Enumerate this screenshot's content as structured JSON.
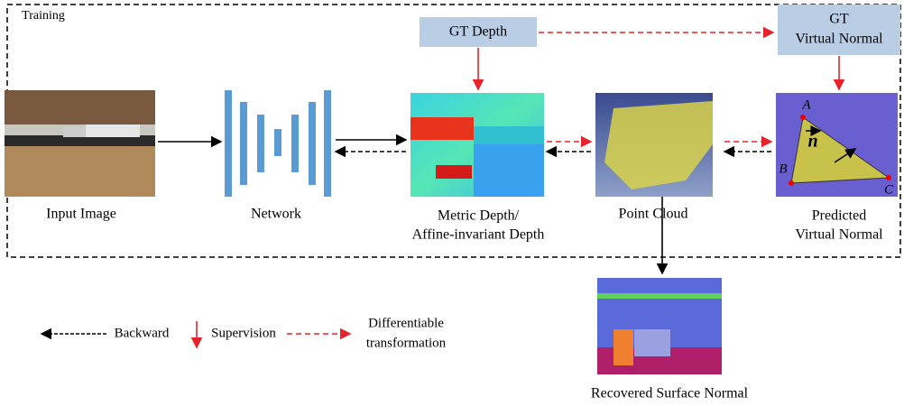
{
  "training_label": "Training",
  "gt_depth": "GT Depth",
  "gt_virtual_normal": [
    "GT",
    "Virtual Normal"
  ],
  "nodes": [
    {
      "label": [
        "Input Image"
      ]
    },
    {
      "label": [
        "Network"
      ]
    },
    {
      "label": [
        "Metric Depth/",
        "Affine-invariant Depth"
      ]
    },
    {
      "label": [
        "Point Cloud"
      ]
    },
    {
      "label": [
        "Predicted",
        "Virtual Normal"
      ]
    },
    {
      "label": [
        "Recovered Surface Normal"
      ]
    }
  ],
  "triangle_points": [
    "A",
    "B",
    "C"
  ],
  "normal_symbol": "n",
  "legend": {
    "backward": "Backward",
    "supervision": "Supervision",
    "differentiable": [
      "Differentiable",
      "transformation"
    ]
  }
}
